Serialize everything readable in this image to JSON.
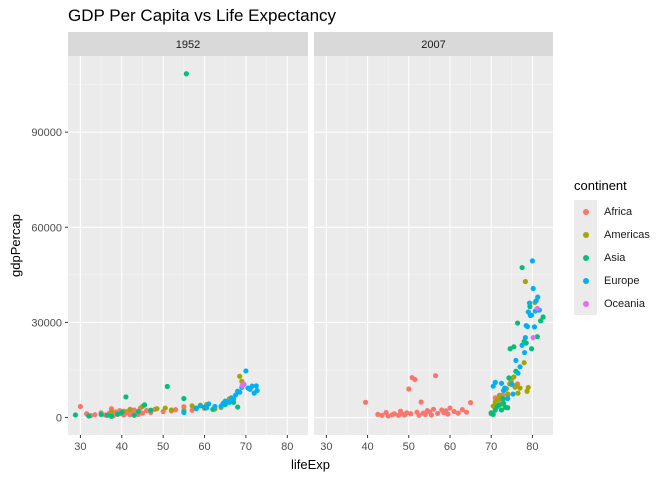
{
  "chart_data": {
    "type": "scatter",
    "title": "GDP Per Capita vs Life Expectancy",
    "xlabel": "lifeExp",
    "ylabel": "gdpPercap",
    "xlim": [
      27,
      85
    ],
    "ylim": [
      -5500,
      114000
    ],
    "x_ticks": [
      30,
      40,
      50,
      60,
      70,
      80
    ],
    "y_ticks": [
      0,
      30000,
      60000,
      90000
    ],
    "grid": true,
    "legend_title": "continent",
    "legend_position": "right",
    "colors": {
      "Africa": "#F8766D",
      "Americas": "#A3A500",
      "Asia": "#00BF7D",
      "Europe": "#00B0F6",
      "Oceania": "#E76BF3"
    },
    "facets": [
      {
        "label": "1952",
        "series": [
          {
            "name": "Africa",
            "points": [
              [
                30.0,
                3500
              ],
              [
                31.5,
                1200
              ],
              [
                32.5,
                600
              ],
              [
                33.5,
                900
              ],
              [
                35.0,
                1500
              ],
              [
                36.0,
                800
              ],
              [
                37.0,
                1400
              ],
              [
                37.5,
                2800
              ],
              [
                38.0,
                600
              ],
              [
                38.5,
                1800
              ],
              [
                39.0,
                1000
              ],
              [
                39.5,
                2200
              ],
              [
                40.0,
                1200
              ],
              [
                40.5,
                800
              ],
              [
                41.0,
                1500
              ],
              [
                41.5,
                2000
              ],
              [
                42.0,
                900
              ],
              [
                42.5,
                1300
              ],
              [
                43.0,
                2400
              ],
              [
                43.5,
                1700
              ],
              [
                44.0,
                1000
              ],
              [
                44.5,
                3000
              ],
              [
                45.0,
                1400
              ],
              [
                46.0,
                2200
              ],
              [
                47.0,
                1600
              ],
              [
                48.0,
                2600
              ],
              [
                50.0,
                1900
              ],
              [
                52.0,
                2100
              ],
              [
                53.0,
                2500
              ],
              [
                55.0,
                3400
              ],
              [
                57.0,
                2300
              ],
              [
                60.0,
                2900
              ]
            ]
          },
          {
            "name": "Americas",
            "points": [
              [
                37.5,
                1800
              ],
              [
                40.5,
                2000
              ],
              [
                42.0,
                2600
              ],
              [
                45.0,
                3500
              ],
              [
                48.5,
                2800
              ],
              [
                50.5,
                3000
              ],
              [
                52.0,
                2400
              ],
              [
                55.0,
                2200
              ],
              [
                57.0,
                3700
              ],
              [
                59.0,
                3900
              ],
              [
                60.5,
                4100
              ],
              [
                62.5,
                2700
              ],
              [
                64.0,
                3200
              ],
              [
                66.0,
                5900
              ],
              [
                68.5,
                13000
              ],
              [
                69.0,
                11400
              ]
            ]
          },
          {
            "name": "Asia",
            "points": [
              [
                28.8,
                800
              ],
              [
                32.0,
                500
              ],
              [
                35.0,
                1000
              ],
              [
                36.5,
                700
              ],
              [
                37.5,
                400
              ],
              [
                39.0,
                1100
              ],
              [
                40.0,
                1600
              ],
              [
                41.0,
                6500
              ],
              [
                43.0,
                700
              ],
              [
                44.0,
                1900
              ],
              [
                45.5,
                4000
              ],
              [
                47.0,
                2300
              ],
              [
                51.0,
                9800
              ],
              [
                55.0,
                6000
              ],
              [
                55.6,
                108400
              ],
              [
                58.0,
                3000
              ],
              [
                60.0,
                3200
              ],
              [
                62.0,
                2600
              ],
              [
                65.0,
                4100
              ],
              [
                67.0,
                4800
              ],
              [
                68.0,
                3300
              ]
            ]
          },
          {
            "name": "Europe",
            "points": [
              [
                55.0,
                1600
              ],
              [
                58.0,
                2800
              ],
              [
                59.0,
                3700
              ],
              [
                60.5,
                3100
              ],
              [
                61.0,
                4300
              ],
              [
                62.5,
                3500
              ],
              [
                64.0,
                3600
              ],
              [
                64.5,
                4500
              ],
              [
                65.0,
                5200
              ],
              [
                66.0,
                4800
              ],
              [
                66.5,
                6200
              ],
              [
                67.0,
                5800
              ],
              [
                67.5,
                7100
              ],
              [
                68.0,
                8300
              ],
              [
                68.5,
                8000
              ],
              [
                69.0,
                9500
              ],
              [
                69.5,
                10500
              ],
              [
                70.0,
                14700
              ],
              [
                70.5,
                9300
              ],
              [
                71.0,
                8900
              ],
              [
                71.5,
                9900
              ],
              [
                72.0,
                7700
              ],
              [
                72.5,
                10000
              ],
              [
                72.7,
                8500
              ]
            ]
          },
          {
            "name": "Oceania",
            "points": [
              [
                69.1,
                10000
              ],
              [
                69.4,
                10600
              ]
            ]
          }
        ]
      },
      {
        "label": "2007",
        "series": [
          {
            "name": "Africa",
            "points": [
              [
                39.5,
                4800
              ],
              [
                42.5,
                1000
              ],
              [
                43.5,
                700
              ],
              [
                44.5,
                1600
              ],
              [
                45.0,
                500
              ],
              [
                46.0,
                900
              ],
              [
                46.5,
                1200
              ],
              [
                47.5,
                700
              ],
              [
                48.0,
                2000
              ],
              [
                48.5,
                1100
              ],
              [
                49.0,
                800
              ],
              [
                49.5,
                1500
              ],
              [
                50.0,
                9000
              ],
              [
                50.5,
                1200
              ],
              [
                50.8,
                12600
              ],
              [
                51.5,
                12000
              ],
              [
                52.0,
                1700
              ],
              [
                52.5,
                700
              ],
              [
                53.0,
                4900
              ],
              [
                53.5,
                1400
              ],
              [
                54.0,
                1000
              ],
              [
                54.5,
                2200
              ],
              [
                55.0,
                1800
              ],
              [
                55.5,
                800
              ],
              [
                56.0,
                2600
              ],
              [
                56.5,
                13200
              ],
              [
                57.0,
                1300
              ],
              [
                58.0,
                2400
              ],
              [
                58.5,
                1600
              ],
              [
                59.0,
                2100
              ],
              [
                59.5,
                1100
              ],
              [
                60.0,
                3000
              ],
              [
                61.0,
                1900
              ],
              [
                62.0,
                1400
              ],
              [
                63.0,
                2500
              ],
              [
                64.0,
                1700
              ],
              [
                65.0,
                4700
              ],
              [
                71.0,
                6200
              ],
              [
                72.5,
                5300
              ],
              [
                72.8,
                7100
              ],
              [
                74.0,
                7000
              ],
              [
                76.4,
                10600
              ]
            ]
          },
          {
            "name": "Americas",
            "points": [
              [
                70.0,
                1200
              ],
              [
                70.5,
                3600
              ],
              [
                71.0,
                4900
              ],
              [
                71.5,
                5600
              ],
              [
                72.0,
                7000
              ],
              [
                72.5,
                6100
              ],
              [
                72.9,
                5800
              ],
              [
                73.0,
                4200
              ],
              [
                73.5,
                8900
              ],
              [
                73.7,
                9100
              ],
              [
                74.0,
                7400
              ],
              [
                74.5,
                10600
              ],
              [
                74.8,
                11400
              ],
              [
                75.0,
                12300
              ],
              [
                75.5,
                12800
              ],
              [
                75.8,
                9600
              ],
              [
                76.0,
                10100
              ],
              [
                76.5,
                7700
              ],
              [
                77.0,
                9300
              ],
              [
                78.0,
                17300
              ],
              [
                78.3,
                42900
              ],
              [
                78.7,
                8300
              ],
              [
                79.0,
                9500
              ],
              [
                80.6,
                36300
              ]
            ]
          },
          {
            "name": "Asia",
            "points": [
              [
                70.0,
                1500
              ],
              [
                70.5,
                1000
              ],
              [
                71.0,
                2400
              ],
              [
                71.5,
                3500
              ],
              [
                72.0,
                4000
              ],
              [
                72.5,
                2400
              ],
              [
                72.9,
                5900
              ],
              [
                73.0,
                4500
              ],
              [
                73.5,
                3200
              ],
              [
                74.0,
                3100
              ],
              [
                74.3,
                12500
              ],
              [
                74.6,
                21700
              ],
              [
                75.5,
                22300
              ],
              [
                76.0,
                14600
              ],
              [
                76.4,
                29800
              ],
              [
                77.5,
                47300
              ],
              [
                78.0,
                24000
              ],
              [
                78.5,
                23500
              ],
              [
                79.4,
                35000
              ],
              [
                79.8,
                21700
              ],
              [
                81.2,
                25500
              ],
              [
                82.0,
                30500
              ],
              [
                82.6,
                31700
              ]
            ]
          },
          {
            "name": "Europe",
            "points": [
              [
                70.5,
                9900
              ],
              [
                71.0,
                11100
              ],
              [
                72.5,
                10800
              ],
              [
                73.0,
                8500
              ],
              [
                73.3,
                9300
              ],
              [
                74.0,
                6000
              ],
              [
                75.0,
                10500
              ],
              [
                75.3,
                7400
              ],
              [
                76.0,
                18000
              ],
              [
                76.5,
                14000
              ],
              [
                77.0,
                16000
              ],
              [
                77.5,
                22800
              ],
              [
                78.1,
                20500
              ],
              [
                78.3,
                25200
              ],
              [
                78.5,
                29000
              ],
              [
                78.8,
                28700
              ],
              [
                79.0,
                33300
              ],
              [
                79.3,
                36100
              ],
              [
                79.5,
                32200
              ],
              [
                79.8,
                32300
              ],
              [
                80.0,
                49400
              ],
              [
                80.2,
                40700
              ],
              [
                80.5,
                28600
              ],
              [
                80.7,
                33600
              ],
              [
                80.9,
                36800
              ],
              [
                81.3,
                38000
              ],
              [
                81.7,
                33900
              ]
            ]
          },
          {
            "name": "Oceania",
            "points": [
              [
                80.2,
                25200
              ],
              [
                81.2,
                34400
              ]
            ]
          }
        ]
      }
    ]
  }
}
